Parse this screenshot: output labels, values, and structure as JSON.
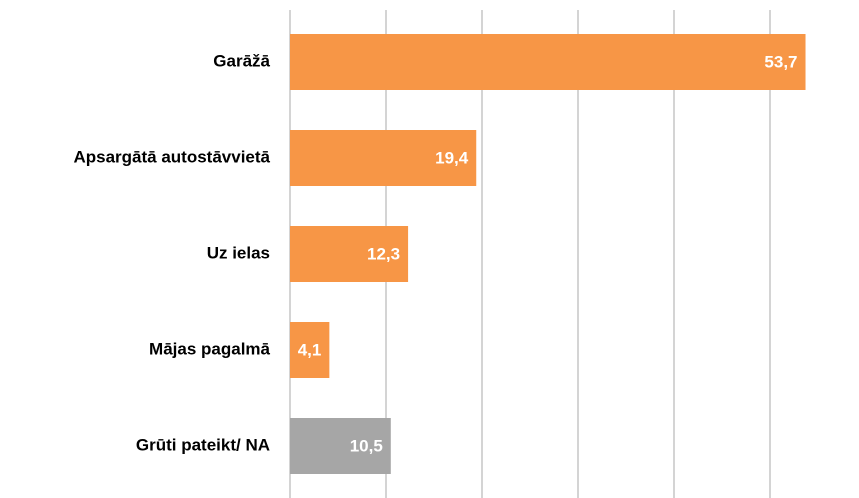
{
  "chart_data": {
    "type": "barh",
    "categories": [
      "Garāžā",
      "Apsargātā autostāvvietā",
      "Uz ielas",
      "Mājas pagalmā",
      "Grūti pateikt/ NA"
    ],
    "values": [
      53.7,
      19.4,
      12.3,
      4.1,
      10.5
    ],
    "value_labels": [
      "53,7",
      "19,4",
      "12,3",
      "4,1",
      "10,5"
    ],
    "colors": [
      "#f79646",
      "#f79646",
      "#f79646",
      "#f79646",
      "#a6a6a6"
    ],
    "xlim": [
      0,
      55
    ],
    "xticks": [
      0,
      10,
      20,
      30,
      40,
      50
    ],
    "grid": true
  }
}
